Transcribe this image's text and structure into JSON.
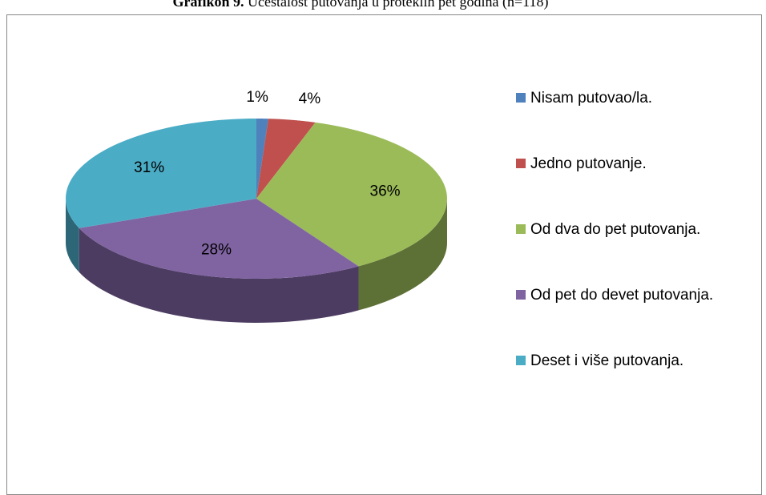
{
  "chart_data": {
    "type": "pie",
    "figure_label": "Grafikon 9.",
    "title": "Učestalost putovanja u proteklih pet godina (n=118)",
    "categories": [
      "Nisam putovao/la.",
      "Jedno putovanje.",
      "Od dva do pet putovanja.",
      "Od pet do devet putovanja.",
      "Deset i više putovanja."
    ],
    "values": [
      1,
      4,
      36,
      28,
      31
    ],
    "value_labels": [
      "1%",
      "4%",
      "36%",
      "28%",
      "31%"
    ],
    "colors": [
      "#4f81bd",
      "#c0504d",
      "#9bbb59",
      "#8064a2",
      "#4bacc6"
    ],
    "legend": "right"
  }
}
